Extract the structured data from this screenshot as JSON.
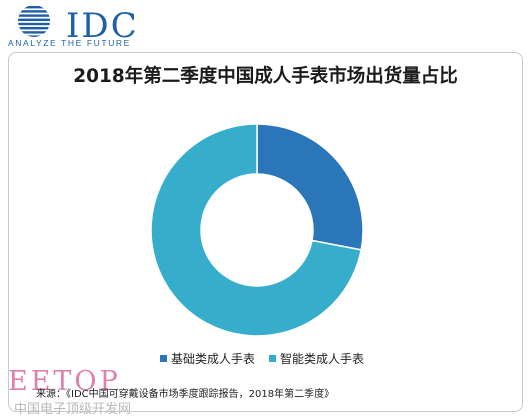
{
  "logo": {
    "text": "IDC",
    "tagline": "ANALYZE THE FUTURE"
  },
  "chart_data": {
    "type": "pie",
    "donut": true,
    "title": "2018年第二季度中国成人手表市场出货量占比",
    "categories": [
      "基础类成人手表",
      "智能类成人手表"
    ],
    "values": [
      28,
      72
    ],
    "colors": [
      "#2a76b8",
      "#36aecb"
    ],
    "legend_position": "bottom"
  },
  "source": "来源：《IDC中国可穿戴设备市场季度跟踪报告，2018年第二季度》",
  "watermark": {
    "brand": "EETOP",
    "site": "中国电子顶级开发网"
  }
}
